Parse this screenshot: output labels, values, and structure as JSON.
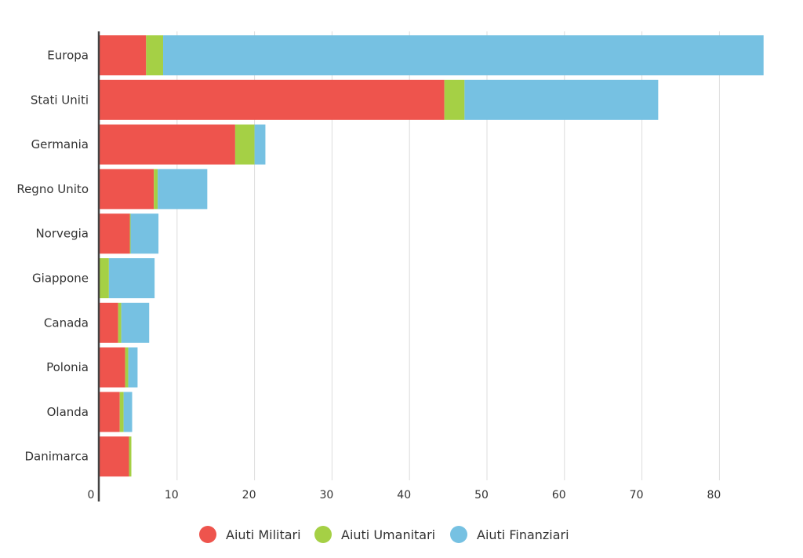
{
  "chart_data": {
    "type": "bar",
    "orientation": "horizontal",
    "stacked": true,
    "title": "",
    "xlabel": "",
    "ylabel": "",
    "xlim": [
      0,
      90
    ],
    "x_ticks": [
      0,
      10,
      20,
      30,
      40,
      50,
      60,
      70,
      80
    ],
    "grid": "vertical",
    "legend_position": "bottom",
    "categories": [
      "Europa",
      "Stati Uniti",
      "Germania",
      "Regno Unito",
      "Norvegia",
      "Giappone",
      "Canada",
      "Polonia",
      "Olanda",
      "Danimarca"
    ],
    "series": [
      {
        "name": "Aiuti Militari",
        "color": "#ee544d",
        "values": [
          6.0,
          44.5,
          17.5,
          7.0,
          3.9,
          0.0,
          2.4,
          3.3,
          2.6,
          3.8
        ]
      },
      {
        "name": "Aiuti Umanitari",
        "color": "#a5d045",
        "values": [
          2.2,
          2.6,
          2.5,
          0.5,
          0.1,
          1.2,
          0.4,
          0.4,
          0.5,
          0.3
        ]
      },
      {
        "name": "Aiuti Finanziari",
        "color": "#76c1e2",
        "values": [
          77.5,
          25.0,
          1.4,
          6.4,
          3.6,
          5.9,
          3.6,
          1.2,
          1.1,
          0.0
        ]
      }
    ]
  }
}
